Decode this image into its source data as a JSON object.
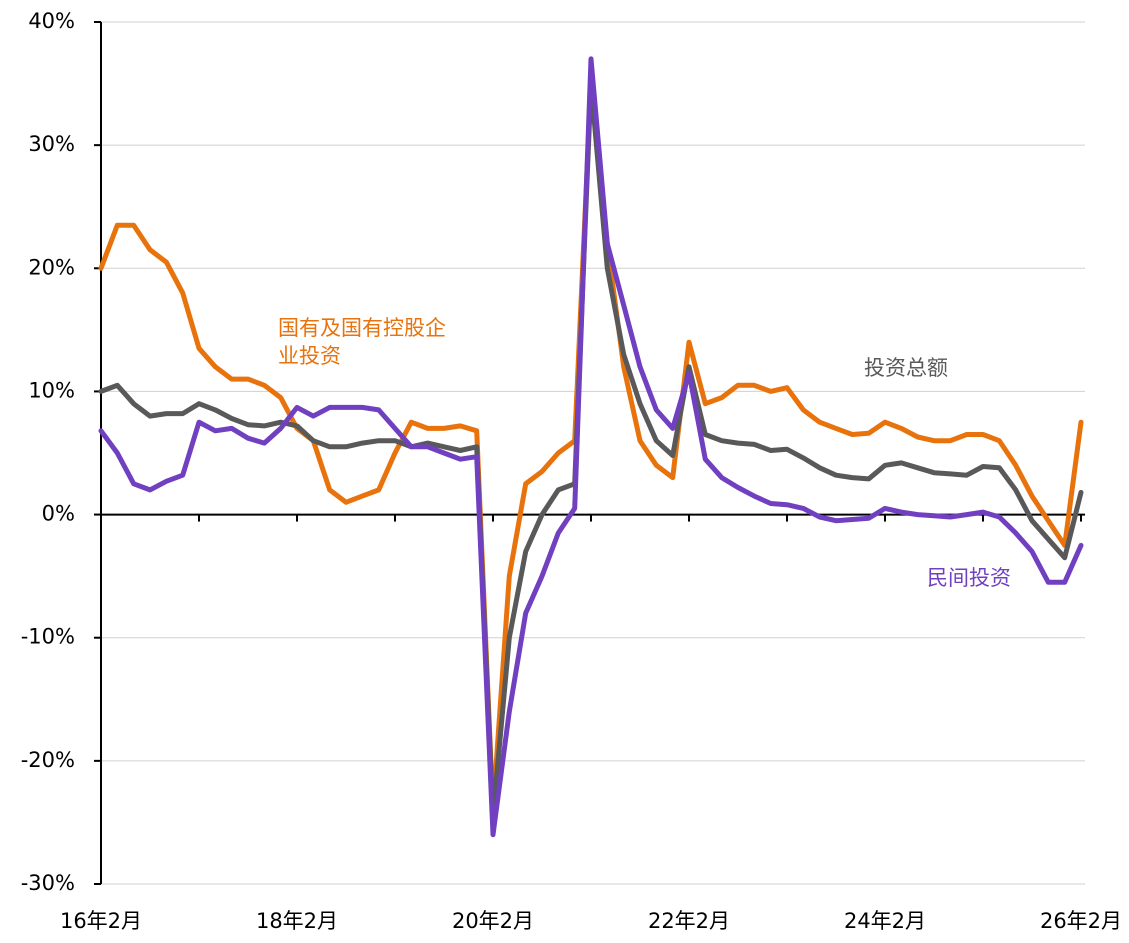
{
  "chart_data": {
    "type": "line",
    "categories": [
      "16年2月",
      null,
      null,
      null,
      null,
      null,
      null,
      null,
      null,
      null,
      null,
      null,
      "18年2月",
      null,
      null,
      null,
      null,
      null,
      null,
      null,
      null,
      null,
      null,
      null,
      "20年2月",
      null,
      null,
      null,
      null,
      null,
      null,
      null,
      null,
      null,
      null,
      null,
      "22年2月",
      null,
      null,
      null,
      null,
      null,
      null,
      null,
      null,
      null,
      null,
      null,
      "24年2月",
      null,
      null,
      null,
      null,
      null,
      null,
      null,
      null,
      null,
      null,
      null,
      "26年2月"
    ],
    "series": [
      {
        "name": "国有及国有控股企业投资",
        "color": "#e8730c",
        "values": [
          20,
          23.5,
          23.5,
          21.5,
          20.5,
          18,
          13.5,
          12,
          11,
          11,
          10.5,
          9.5,
          7,
          6,
          2,
          1,
          1.5,
          2,
          5,
          7.5,
          7,
          7,
          7.2,
          6.8,
          -24,
          -5,
          2.5,
          3.5,
          5,
          6,
          35,
          22,
          12,
          6,
          4,
          3,
          14,
          9,
          9.5,
          10.5,
          10.5,
          10,
          10.3,
          8.5,
          7.5,
          7,
          6.5,
          6.6,
          7.5,
          7,
          6.3,
          6,
          6,
          6.5,
          6.5,
          6,
          4,
          1.5,
          -0.5,
          -2.5,
          7.5
        ]
      },
      {
        "name": "投资总额",
        "color": "#595959",
        "values": [
          10,
          10.5,
          9,
          8,
          8.2,
          8.2,
          9,
          8.5,
          7.8,
          7.3,
          7.2,
          7.5,
          7.2,
          6,
          5.5,
          5.5,
          5.8,
          6,
          6,
          5.5,
          5.8,
          5.5,
          5.2,
          5.5,
          -24.5,
          -10,
          -3,
          0,
          2,
          2.5,
          35,
          20,
          13,
          9,
          6,
          4.8,
          12,
          6.5,
          6,
          5.8,
          5.7,
          5.2,
          5.3,
          4.6,
          3.8,
          3.2,
          3,
          2.9,
          4,
          4.2,
          3.8,
          3.4,
          3.3,
          3.2,
          3.9,
          3.8,
          2,
          -0.5,
          -2,
          -3.5,
          1.8
        ]
      },
      {
        "name": "民间投资",
        "color": "#7040c0",
        "values": [
          6.8,
          5,
          2.5,
          2,
          2.7,
          3.2,
          7.5,
          6.8,
          7,
          6.2,
          5.8,
          7,
          8.7,
          8,
          8.7,
          8.7,
          8.7,
          8.5,
          7,
          5.5,
          5.5,
          5,
          4.5,
          4.7,
          -26,
          -16,
          -8,
          -5,
          -1.5,
          0.5,
          37,
          22,
          17,
          12,
          8.5,
          7,
          11.5,
          4.5,
          3,
          2.2,
          1.5,
          0.9,
          0.8,
          0.5,
          -0.2,
          -0.5,
          -0.4,
          -0.3,
          0.5,
          0.2,
          0,
          -0.1,
          -0.2,
          0,
          0.2,
          -0.2,
          -1.5,
          -3,
          -5.5,
          -5.5,
          -2.5
        ]
      }
    ],
    "ylim": [
      -30,
      40
    ],
    "yticks": [
      {
        "value": -30,
        "label": "-30%"
      },
      {
        "value": -20,
        "label": "-20%"
      },
      {
        "value": -10,
        "label": "-10%"
      },
      {
        "value": 0,
        "label": "0%"
      },
      {
        "value": 10,
        "label": "10%"
      },
      {
        "value": 20,
        "label": "20%"
      },
      {
        "value": 30,
        "label": "30%"
      },
      {
        "value": 40,
        "label": "40%"
      }
    ],
    "grid": true
  }
}
